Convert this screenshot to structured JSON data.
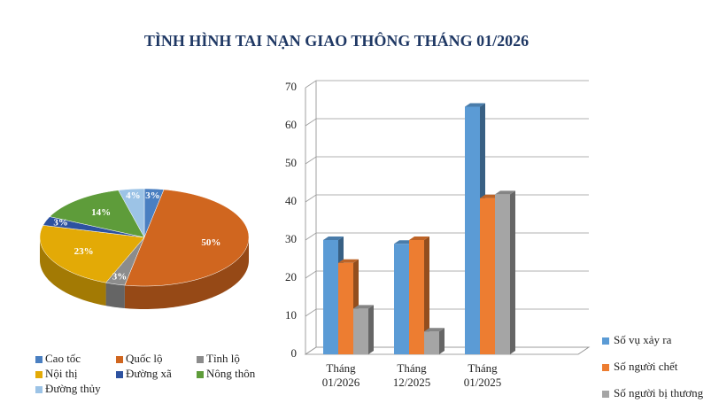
{
  "title": "TÌNH HÌNH TAI NẠN GIAO THÔNG THÁNG 01/2026",
  "chart_data": [
    {
      "type": "pie",
      "categories": [
        "Cao tốc",
        "Quốc lộ",
        "Tỉnh lộ",
        "Nội thị",
        "Đường xã",
        "Nông thôn",
        "Đường thủy"
      ],
      "values": [
        3,
        50,
        3,
        23,
        3,
        14,
        4
      ],
      "value_labels": [
        "3%",
        "50%",
        "3%",
        "23%",
        "3%",
        "14%",
        "4%"
      ],
      "colors": [
        "#4a7fc1",
        "#d0661f",
        "#8c8c8c",
        "#e3aa06",
        "#2d52a0",
        "#5e9c3a",
        "#9cc3e6"
      ],
      "legend": "bottom"
    },
    {
      "type": "bar",
      "categories": [
        "Tháng 01/2026",
        "Tháng 12/2025",
        "Tháng 01/2025"
      ],
      "series": [
        {
          "name": "Số vụ xảy ra",
          "color": "#5b9bd5",
          "values": [
            30,
            29,
            65
          ]
        },
        {
          "name": "Số người chết",
          "color": "#ed7d31",
          "values": [
            24,
            30,
            41
          ]
        },
        {
          "name": "Số người bị thương",
          "color": "#a5a5a5",
          "values": [
            12,
            6,
            42
          ]
        }
      ],
      "ylim": [
        0,
        70
      ],
      "yticks": [
        0,
        10,
        20,
        30,
        40,
        50,
        60,
        70
      ],
      "grid": true,
      "legend": "right"
    }
  ]
}
